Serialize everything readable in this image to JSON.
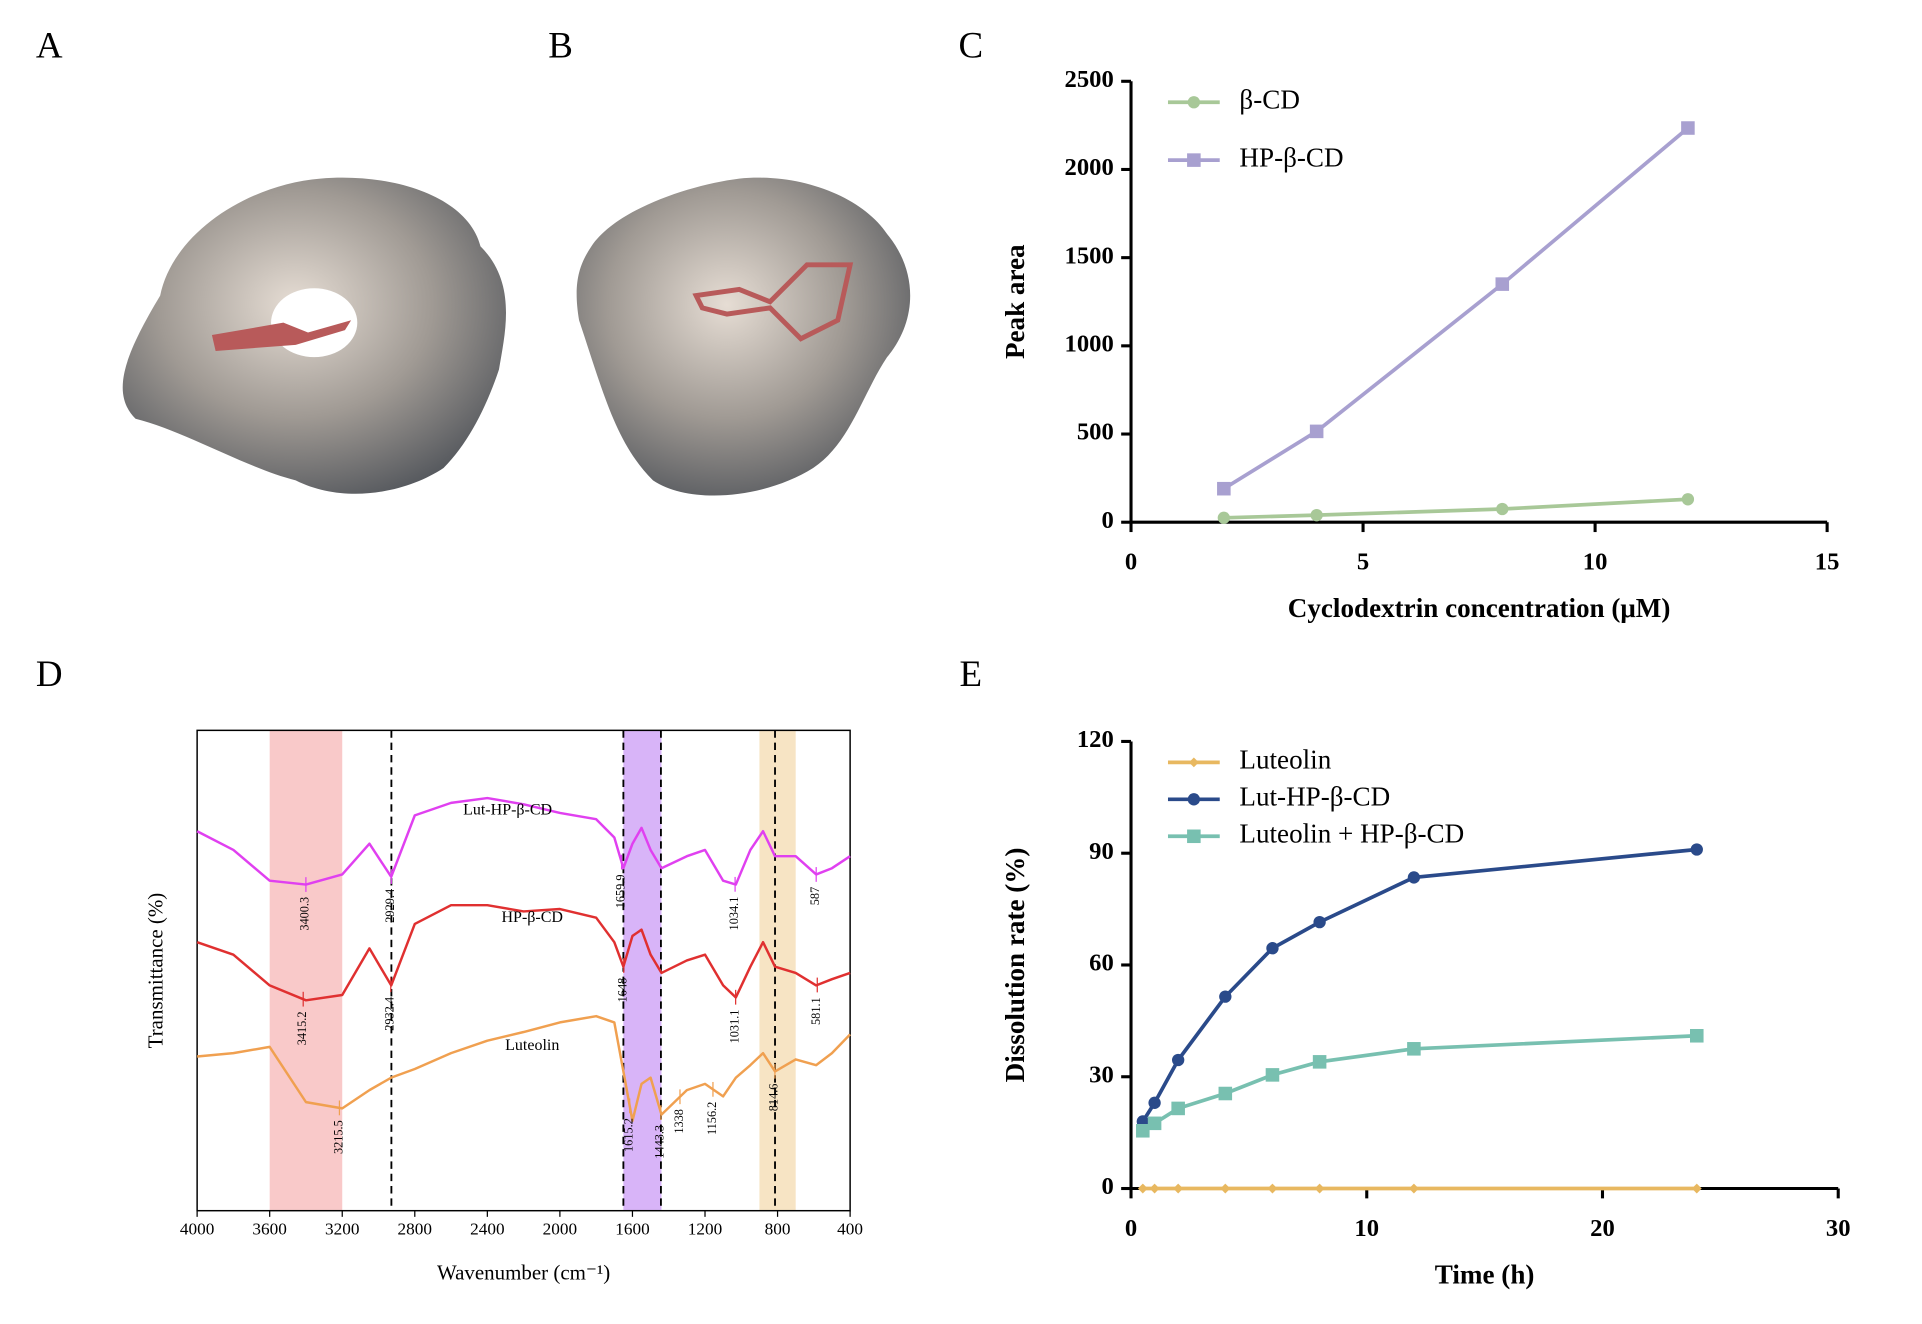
{
  "panel_labels": [
    "A",
    "B",
    "C",
    "D",
    "E"
  ],
  "chart_data": [
    {
      "type": "line",
      "xlabel": "Cyclodextrin concentration (μM)",
      "ylabel": "Peak area",
      "x": [
        2,
        4,
        8,
        12
      ],
      "series": [
        {
          "name": "β-CD",
          "color": "#a8c898",
          "marker": "circle",
          "values": [
            25,
            40,
            75,
            130
          ]
        },
        {
          "name": "HP-β-CD",
          "color": "#a8a0d0",
          "marker": "square",
          "values": [
            190,
            515,
            1350,
            2235
          ]
        }
      ],
      "xlim": [
        0,
        15
      ],
      "xticks": [
        0,
        5,
        10,
        15
      ],
      "ylim": [
        0,
        2500
      ],
      "yticks": [
        0,
        500,
        1000,
        1500,
        2000,
        2500
      ],
      "legend": "upper left"
    },
    {
      "type": "spectrum",
      "xlabel": "Wavenumber (cm⁻¹)",
      "ylabel": "Transmittance (%)",
      "x": [
        4000,
        3800,
        3600,
        3400,
        3200,
        3050,
        2930,
        2800,
        2600,
        2400,
        2200,
        2000,
        1800,
        1700,
        1650,
        1600,
        1550,
        1500,
        1440,
        1300,
        1200,
        1100,
        1030,
        950,
        880,
        814,
        700,
        587,
        500,
        400
      ],
      "series": [
        {
          "name": "Lut-HP-β-CD",
          "color": "#e040f0",
          "values": [
            79.0,
            75.1,
            68.7,
            67.9,
            70.0,
            76.4,
            69.5,
            82.3,
            84.9,
            85.9,
            84.6,
            82.8,
            81.5,
            77.7,
            71.3,
            76.4,
            79.7,
            75.1,
            71.3,
            73.8,
            75.1,
            68.7,
            67.9,
            75.1,
            79.0,
            73.8,
            73.8,
            70.0,
            71.3,
            73.8
          ],
          "peaks": [
            3400.3,
            2929.4,
            1659.9,
            1034.1,
            587
          ]
        },
        {
          "name": "HP-β-CD",
          "color": "#e03030",
          "values": [
            55.9,
            53.3,
            46.9,
            43.8,
            44.9,
            54.6,
            46.9,
            59.7,
            63.6,
            63.6,
            62.3,
            62.8,
            61.0,
            55.9,
            50.8,
            57.2,
            58.5,
            53.3,
            49.5,
            52.1,
            53.3,
            46.9,
            44.4,
            50.8,
            55.9,
            50.8,
            49.5,
            46.9,
            48.2,
            49.5
          ],
          "peaks": [
            3415.2,
            2932.4,
            1648,
            1031.1,
            581.1
          ]
        },
        {
          "name": "Luteolin",
          "color": "#f0a050",
          "values": [
            32.1,
            32.8,
            34.1,
            22.6,
            21.3,
            25.1,
            27.7,
            29.5,
            32.8,
            35.4,
            37.2,
            39.2,
            40.5,
            39.2,
            29.0,
            18.7,
            26.4,
            27.7,
            20.0,
            25.1,
            26.4,
            23.8,
            27.7,
            30.3,
            32.8,
            29.0,
            31.5,
            30.3,
            32.8,
            36.7
          ],
          "peaks": [
            3215.5,
            1615.2,
            1443.3,
            1338,
            1156.2,
            814.6
          ]
        }
      ],
      "bands": [
        {
          "range": [
            3600,
            3200
          ],
          "color": "#f9c9c9"
        },
        {
          "range": [
            1650,
            1440
          ],
          "color": "#d8b4f8"
        },
        {
          "range": [
            900,
            700
          ],
          "color": "#f7e4c4"
        }
      ],
      "vlines": [
        2929,
        1650,
        1443,
        814
      ],
      "xlim": [
        4000,
        400
      ],
      "xticks": [
        4000,
        3600,
        3200,
        2800,
        2400,
        2000,
        1600,
        1200,
        800,
        400
      ],
      "ylim": [
        0,
        100
      ],
      "legend": "none"
    },
    {
      "type": "line",
      "xlabel": "Time (h)",
      "ylabel": "Dissolution rate  (%)",
      "x": [
        0.5,
        1,
        2,
        4,
        6,
        8,
        12,
        24
      ],
      "series": [
        {
          "name": "Luteolin",
          "color": "#e8b860",
          "marker": "diamond",
          "values": [
            0,
            0,
            0,
            0,
            0,
            0,
            0,
            0
          ]
        },
        {
          "name": "Lut-HP-β-CD",
          "color": "#2a4a8a",
          "marker": "circle",
          "values": [
            18,
            23,
            34.5,
            51.5,
            64.5,
            71.5,
            83.5,
            91
          ]
        },
        {
          "name": "Luteolin + HP-β-CD",
          "color": "#78c0b0",
          "marker": "square",
          "values": [
            15.5,
            17.5,
            21.5,
            25.5,
            30.5,
            34,
            37.5,
            41
          ]
        }
      ],
      "xlim": [
        0,
        30
      ],
      "xticks": [
        0,
        10,
        20,
        30
      ],
      "ylim": [
        0,
        120
      ],
      "yticks": [
        0,
        30,
        60,
        90,
        120
      ],
      "legend": "upper left"
    }
  ]
}
